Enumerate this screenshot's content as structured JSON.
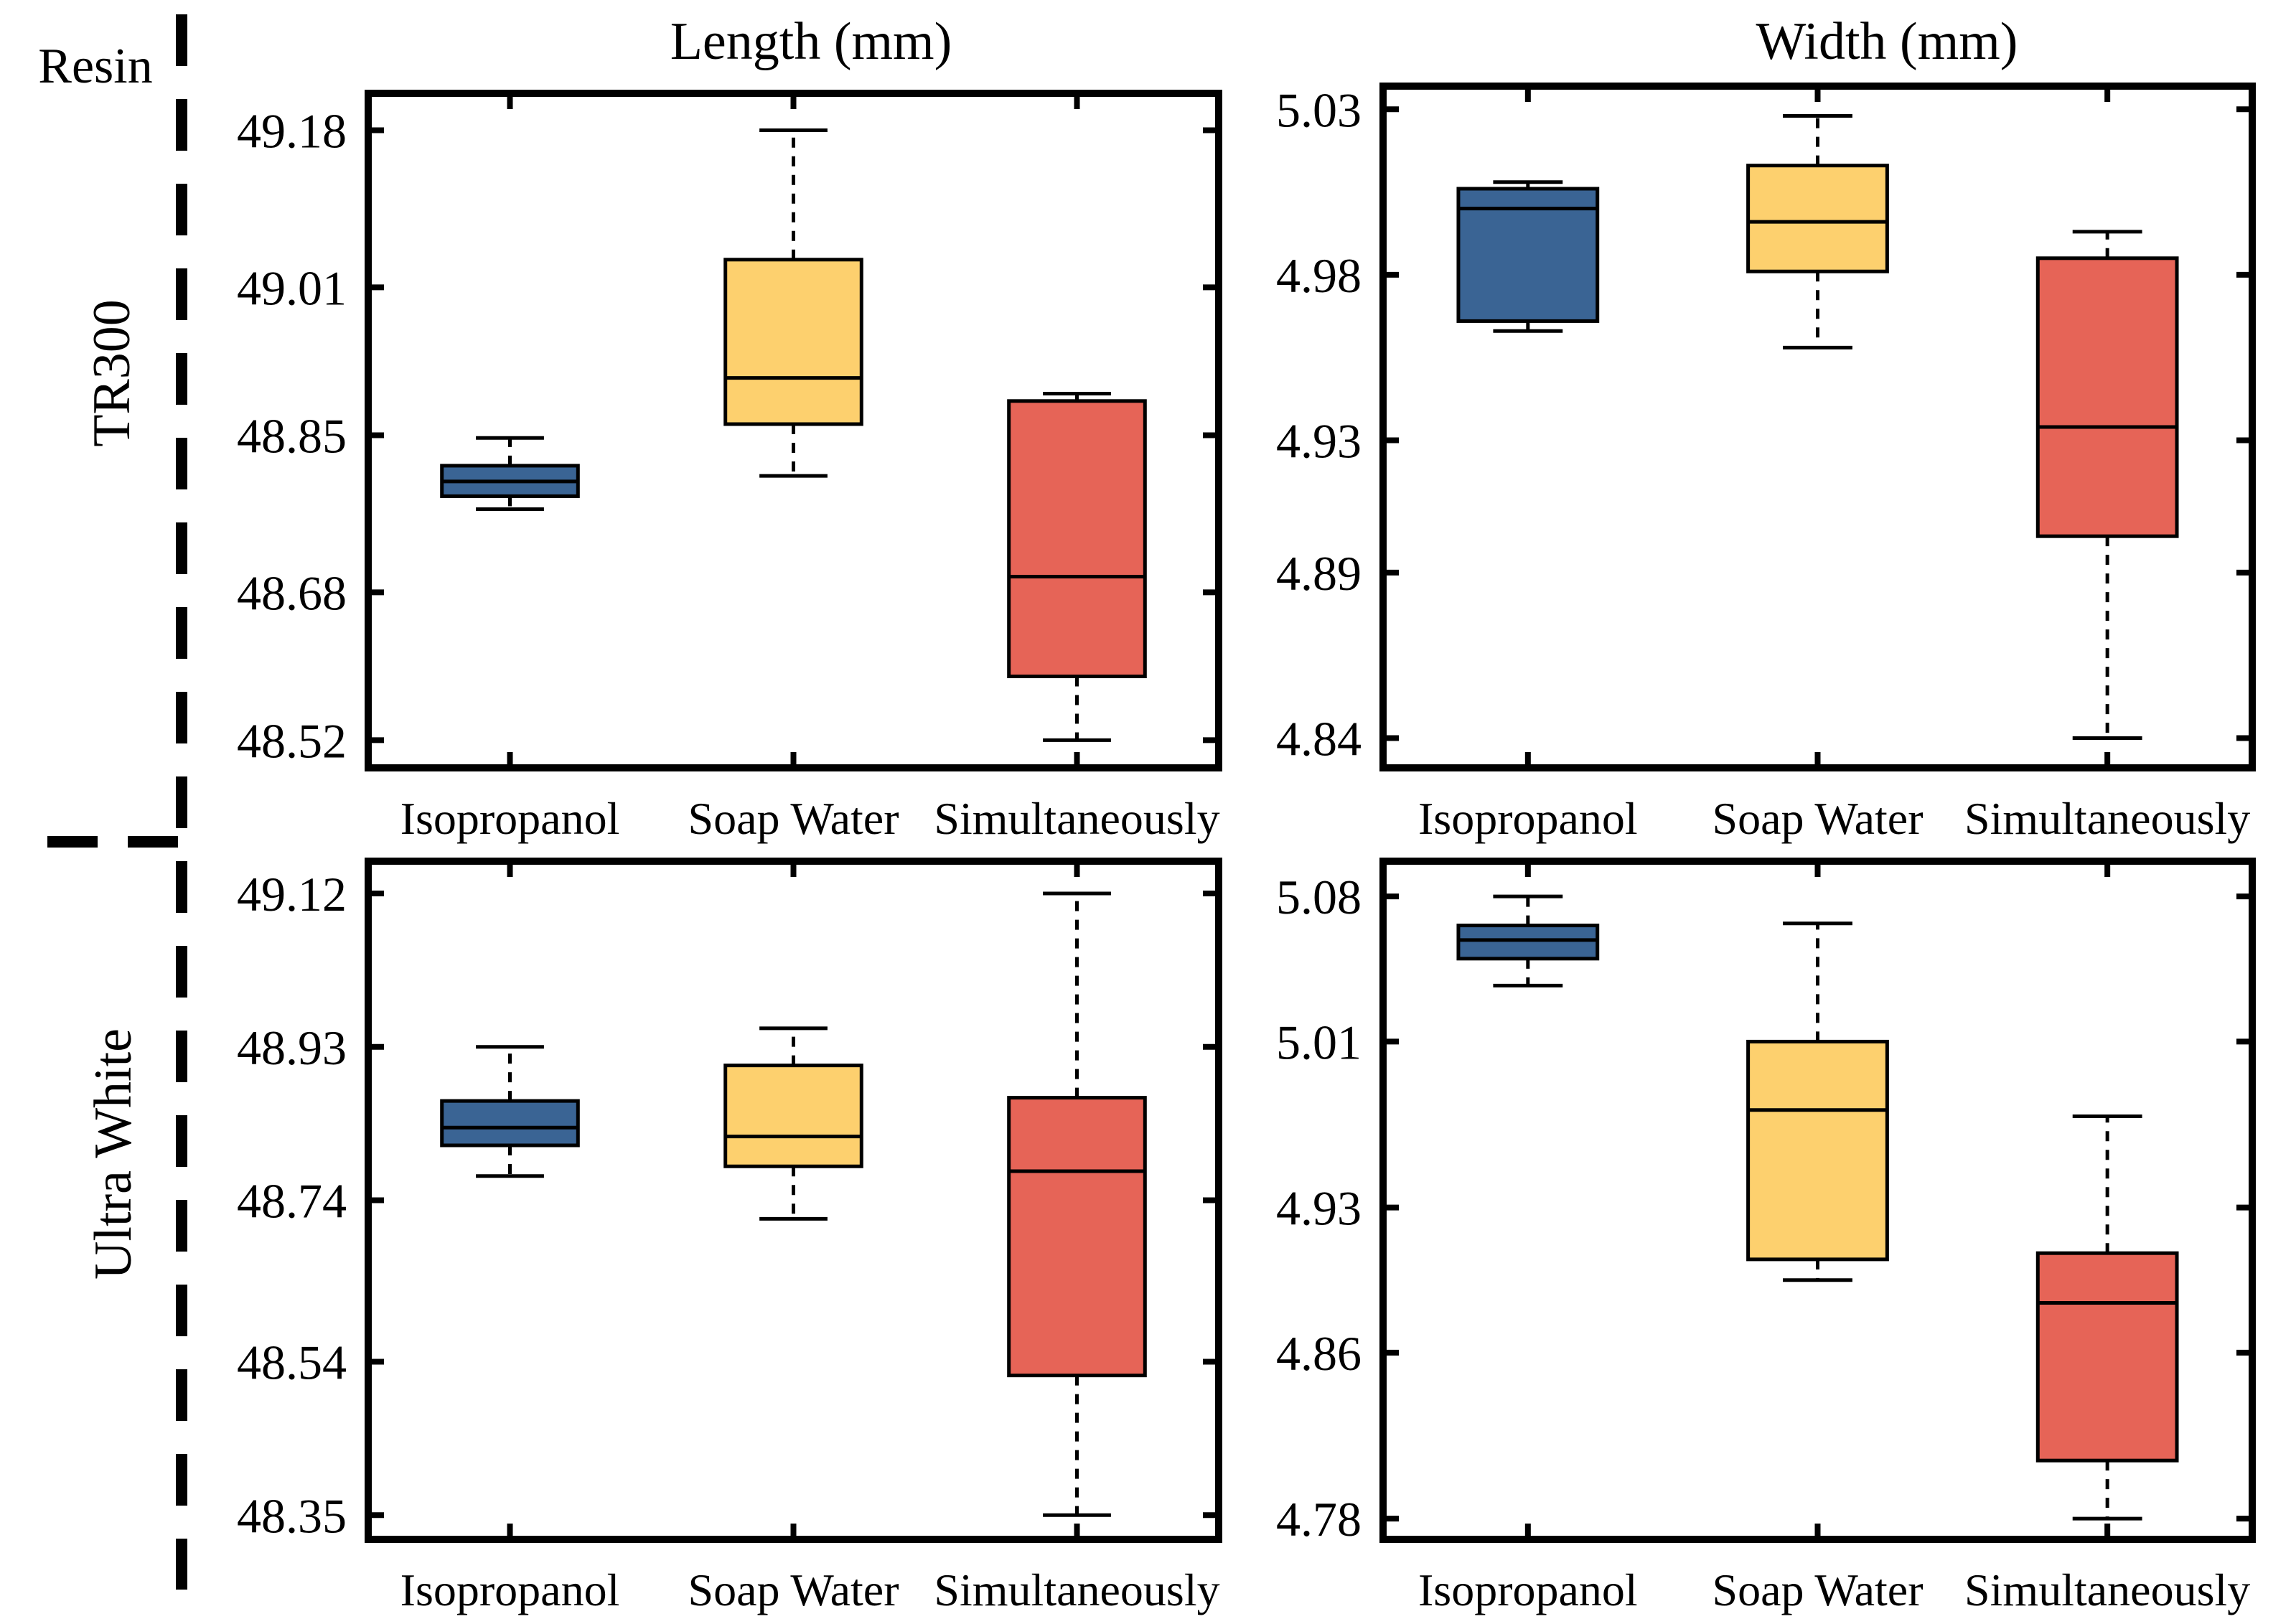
{
  "page": {
    "resin_label": "Resin",
    "col_headers": [
      "Length (mm)",
      "Width (mm)"
    ],
    "row_labels": [
      "TR300",
      "Ultra White"
    ]
  },
  "colors": {
    "isopropanol": "#3a6494",
    "soap_water": "#fdd06e",
    "simultaneously": "#e66457",
    "stroke": "#000000"
  },
  "chart_data": [
    {
      "type": "box",
      "title": "Length (mm)",
      "row": "TR300",
      "categories": [
        "Isopropanol",
        "Soap Water",
        "Simultaneously"
      ],
      "yticks": [
        "49.18",
        "49.01",
        "48.85",
        "48.68",
        "48.52"
      ],
      "ylim": [
        48.49,
        49.22
      ],
      "boxes": [
        {
          "min": 48.77,
          "q1": 48.784,
          "median": 48.8,
          "q3": 48.817,
          "max": 48.847
        },
        {
          "min": 48.806,
          "q1": 48.862,
          "median": 48.912,
          "q3": 49.04,
          "max": 49.18
        },
        {
          "min": 48.52,
          "q1": 48.589,
          "median": 48.697,
          "q3": 48.887,
          "max": 48.895
        }
      ]
    },
    {
      "type": "box",
      "title": "Width (mm)",
      "row": "TR300",
      "categories": [
        "Isopropanol",
        "Soap Water",
        "Simultaneously"
      ],
      "yticks": [
        "5.03",
        "4.98",
        "4.93",
        "4.89",
        "4.84"
      ],
      "ylim": [
        4.831,
        5.037
      ],
      "boxes": [
        {
          "min": 4.963,
          "q1": 4.966,
          "median": 5.0,
          "q3": 5.006,
          "max": 5.008
        },
        {
          "min": 4.958,
          "q1": 4.981,
          "median": 4.996,
          "q3": 5.013,
          "max": 5.028
        },
        {
          "min": 4.84,
          "q1": 4.901,
          "median": 4.934,
          "q3": 4.985,
          "max": 4.993
        }
      ]
    },
    {
      "type": "box",
      "title": "Length (mm)",
      "row": "Ultra White",
      "categories": [
        "Isopropanol",
        "Soap Water",
        "Simultaneously"
      ],
      "yticks": [
        "49.12",
        "48.93",
        "48.74",
        "48.54",
        "48.35"
      ],
      "ylim": [
        48.32,
        49.16
      ],
      "boxes": [
        {
          "min": 48.77,
          "q1": 48.808,
          "median": 48.83,
          "q3": 48.863,
          "max": 48.93
        },
        {
          "min": 48.717,
          "q1": 48.782,
          "median": 48.819,
          "q3": 48.907,
          "max": 48.953
        },
        {
          "min": 48.35,
          "q1": 48.523,
          "median": 48.776,
          "q3": 48.867,
          "max": 49.12
        }
      ]
    },
    {
      "type": "box",
      "title": "Width (mm)",
      "row": "Ultra White",
      "categories": [
        "Isopropanol",
        "Soap Water",
        "Simultaneously"
      ],
      "yticks": [
        "5.08",
        "5.01",
        "4.93",
        "4.86",
        "4.78"
      ],
      "ylim": [
        4.77,
        5.097
      ],
      "boxes": [
        {
          "min": 5.037,
          "q1": 5.05,
          "median": 5.059,
          "q3": 5.066,
          "max": 5.08
        },
        {
          "min": 4.895,
          "q1": 4.905,
          "median": 4.977,
          "q3": 5.01,
          "max": 5.067
        },
        {
          "min": 4.78,
          "q1": 4.808,
          "median": 4.884,
          "q3": 4.908,
          "max": 4.974
        }
      ]
    }
  ]
}
